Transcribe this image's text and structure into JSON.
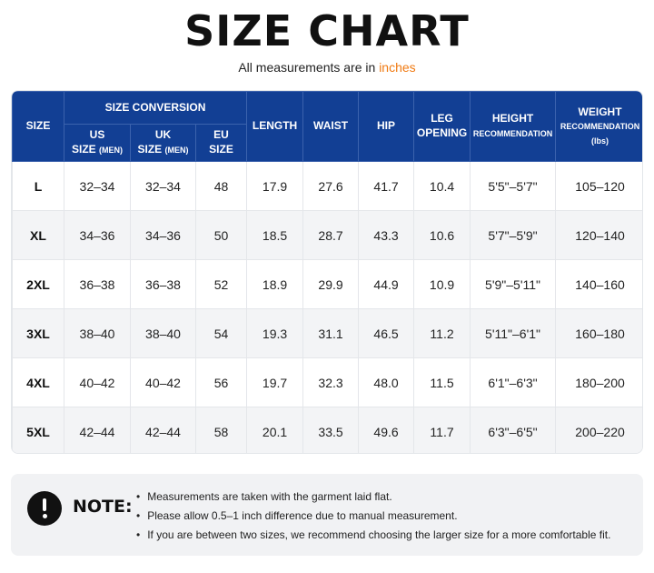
{
  "header": {
    "title": "SIZE CHART",
    "subtitle_prefix": "All measurements are in ",
    "subtitle_unit": "inches"
  },
  "table": {
    "headers": {
      "size": "SIZE",
      "size_conversion": "SIZE CONVERSION",
      "us_line1": "US",
      "us_line2": "SIZE",
      "us_small": "(MEN)",
      "uk_line1": "UK",
      "uk_line2": "SIZE",
      "uk_small": "(MEN)",
      "eu_line1": "EU",
      "eu_line2": "SIZE",
      "length": "LENGTH",
      "waist": "WAIST",
      "hip": "HIP",
      "leg_line1": "LEG",
      "leg_line2": "OPENING",
      "height_line1": "HEIGHT",
      "height_small": "RECOMMENDATION",
      "weight_line1": "WEIGHT",
      "weight_small": "RECOMMENDATION",
      "weight_unit": "(lbs)"
    },
    "rows": [
      [
        "L",
        "32–34",
        "32–34",
        "48",
        "17.9",
        "27.6",
        "41.7",
        "10.4",
        "5'5\"–5'7\"",
        "105–120"
      ],
      [
        "XL",
        "34–36",
        "34–36",
        "50",
        "18.5",
        "28.7",
        "43.3",
        "10.6",
        "5'7\"–5'9\"",
        "120–140"
      ],
      [
        "2XL",
        "36–38",
        "36–38",
        "52",
        "18.9",
        "29.9",
        "44.9",
        "10.9",
        "5'9\"–5'11\"",
        "140–160"
      ],
      [
        "3XL",
        "38–40",
        "38–40",
        "54",
        "19.3",
        "31.1",
        "46.5",
        "11.2",
        "5'11\"–6'1\"",
        "160–180"
      ],
      [
        "4XL",
        "40–42",
        "40–42",
        "56",
        "19.7",
        "32.3",
        "48.0",
        "11.5",
        "6'1\"–6'3\"",
        "180–200"
      ],
      [
        "5XL",
        "42–44",
        "42–44",
        "58",
        "20.1",
        "33.5",
        "49.6",
        "11.7",
        "6'3\"–6'5\"",
        "200–220"
      ]
    ]
  },
  "note": {
    "icon": "exclamation-circle-icon",
    "label": "NOTE:",
    "items": [
      "Measurements are taken with the garment laid flat.",
      "Please allow 0.5–1 inch difference due to manual measurement.",
      "If you are between two sizes, we recommend choosing the larger size for a more comfortable fit."
    ]
  },
  "colors": {
    "header_bg": "#123f94",
    "accent": "#f07a12",
    "stripe": "#f3f4f6"
  }
}
